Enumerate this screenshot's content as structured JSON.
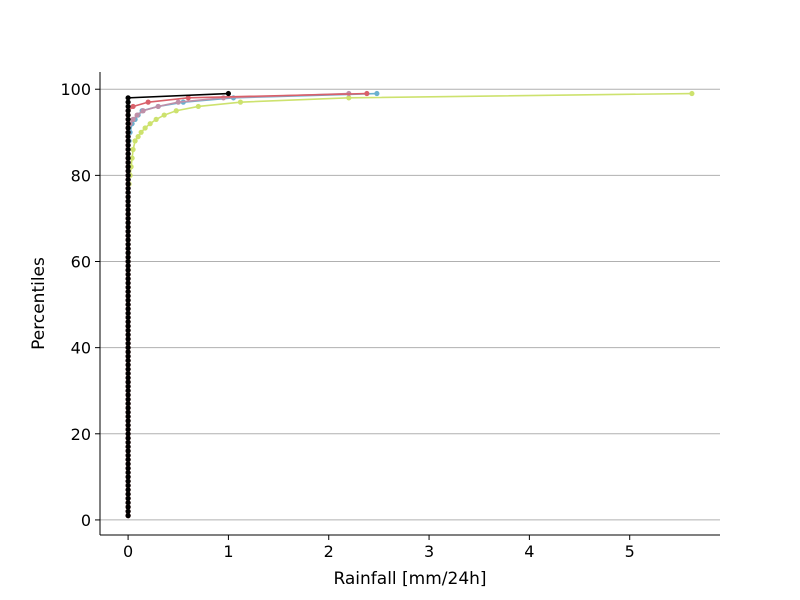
{
  "chart_data": {
    "type": "line",
    "title": "",
    "xlabel": "Rainfall [mm/24h]",
    "ylabel": "Percentiles",
    "xlim": [
      -0.28,
      5.9
    ],
    "ylim": [
      -3.5,
      104
    ],
    "xticks": [
      0,
      1,
      2,
      3,
      4,
      5
    ],
    "yticks": [
      0,
      20,
      40,
      60,
      80,
      100
    ],
    "grid": "y-major",
    "legend": "none",
    "series": [
      {
        "color": "#cde26e",
        "points": [
          [
            0,
            1
          ],
          [
            0,
            76
          ],
          [
            0.01,
            78
          ],
          [
            0.02,
            80
          ],
          [
            0.03,
            82
          ],
          [
            0.04,
            84
          ],
          [
            0.05,
            86
          ],
          [
            0.07,
            88
          ],
          [
            0.1,
            89
          ],
          [
            0.13,
            90
          ],
          [
            0.17,
            91
          ],
          [
            0.22,
            92
          ],
          [
            0.28,
            93
          ],
          [
            0.36,
            94
          ],
          [
            0.48,
            95
          ],
          [
            0.7,
            96
          ],
          [
            1.12,
            97
          ],
          [
            2.2,
            98
          ],
          [
            5.62,
            99
          ]
        ]
      },
      {
        "color": "#6ab0cf",
        "points": [
          [
            0,
            1
          ],
          [
            0,
            86
          ],
          [
            0.01,
            88
          ],
          [
            0.02,
            90
          ],
          [
            0.04,
            92
          ],
          [
            0.07,
            93
          ],
          [
            0.1,
            94
          ],
          [
            0.14,
            95
          ],
          [
            0.3,
            96
          ],
          [
            0.55,
            97
          ],
          [
            1.05,
            98
          ],
          [
            2.48,
            99
          ]
        ]
      },
      {
        "color": "#bf8fa8",
        "points": [
          [
            0,
            1
          ],
          [
            0,
            90
          ],
          [
            0.02,
            92
          ],
          [
            0.05,
            93
          ],
          [
            0.09,
            94
          ],
          [
            0.15,
            95
          ],
          [
            0.3,
            96
          ],
          [
            0.5,
            97
          ],
          [
            0.95,
            98
          ],
          [
            2.2,
            99
          ]
        ]
      },
      {
        "color": "#d9606a",
        "points": [
          [
            0,
            1
          ],
          [
            0,
            95
          ],
          [
            0.05,
            96
          ],
          [
            0.2,
            97
          ],
          [
            0.6,
            98
          ],
          [
            2.38,
            99
          ]
        ]
      },
      {
        "color": "#000000",
        "points": [
          [
            0,
            1
          ],
          [
            0,
            98
          ],
          [
            1.0,
            99
          ]
        ]
      }
    ]
  }
}
